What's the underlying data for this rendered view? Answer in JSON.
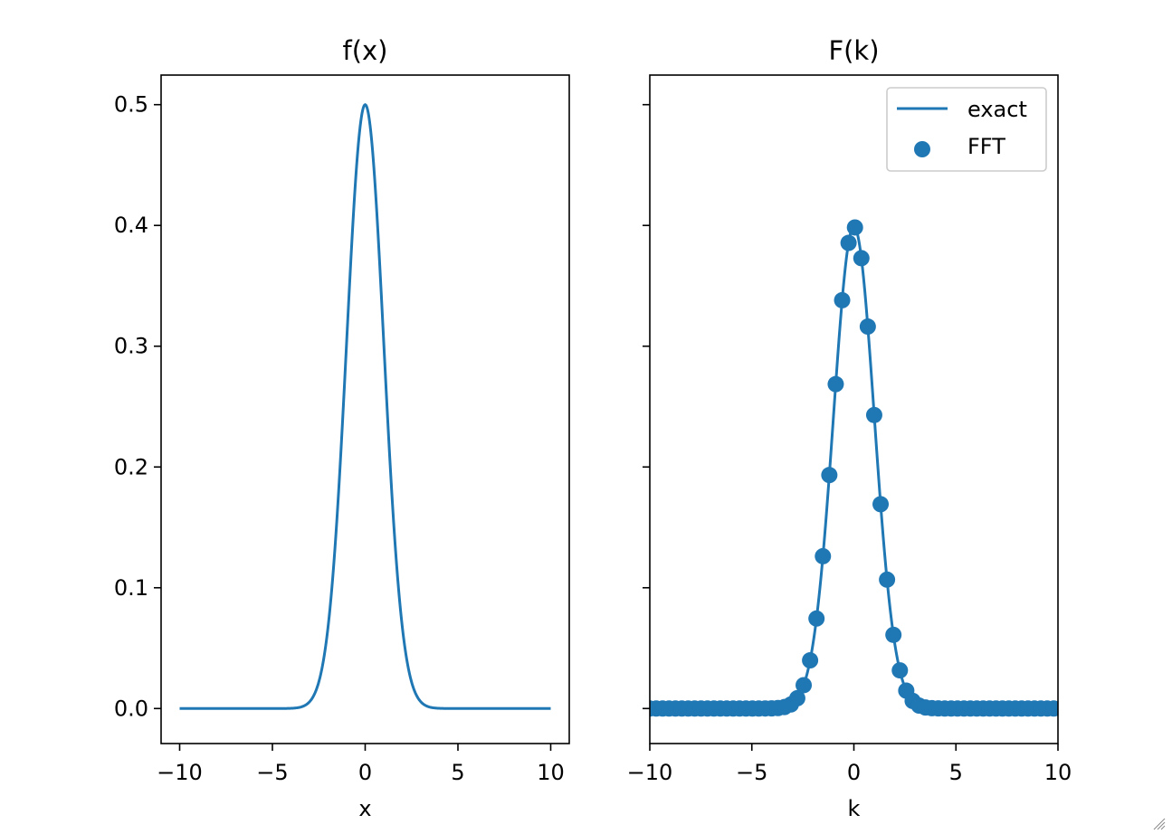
{
  "style": {
    "line_color": "#1f77b4",
    "marker_color": "#1f77b4"
  },
  "chart_data": [
    {
      "type": "line",
      "title": "f(x)",
      "xlabel": "x",
      "ylabel": "",
      "xlim": [
        -11,
        11
      ],
      "ylim": [
        -0.029,
        0.5245
      ],
      "xticks": [
        -10,
        -5,
        0,
        5,
        10
      ],
      "xtick_labels": [
        "−10",
        "−5",
        "0",
        "5",
        "10"
      ],
      "yticks": [
        0.0,
        0.1,
        0.2,
        0.3,
        0.4,
        0.5
      ],
      "ytick_labels": [
        "0.0",
        "0.1",
        "0.2",
        "0.3",
        "0.4",
        "0.5"
      ],
      "series": [
        {
          "function": "0.5*exp(-x^2/2)",
          "x_range": [
            -10,
            10
          ],
          "amplitude": 0.5,
          "sigma": 1
        }
      ],
      "legend": null,
      "grid": false
    },
    {
      "type": "line+scatter",
      "title": "F(k)",
      "xlabel": "k",
      "ylabel": "",
      "xlim": [
        -10,
        10
      ],
      "ylim": [
        -0.029,
        0.5245
      ],
      "xticks": [
        -10,
        -5,
        0,
        5,
        10
      ],
      "xtick_labels": [
        "−10",
        "−5",
        "0",
        "5",
        "10"
      ],
      "yticks": [
        0.0,
        0.1,
        0.2,
        0.3,
        0.4,
        0.5
      ],
      "ytick_labels": [],
      "shared_y": true,
      "series": [
        {
          "name": "exact",
          "kind": "line",
          "function": "0.3989*exp(-k^2/2)",
          "x_range": [
            -10,
            10
          ],
          "amplitude": 0.3989,
          "sigma": 1
        },
        {
          "name": "FFT",
          "kind": "scatter",
          "k_step": 0.31416,
          "k_min": -10,
          "k_max": 10,
          "amplitude": 0.3989,
          "sigma": 1
        }
      ],
      "legend": {
        "position": "top-right",
        "entries": [
          "exact",
          "FFT"
        ]
      },
      "grid": false
    }
  ]
}
